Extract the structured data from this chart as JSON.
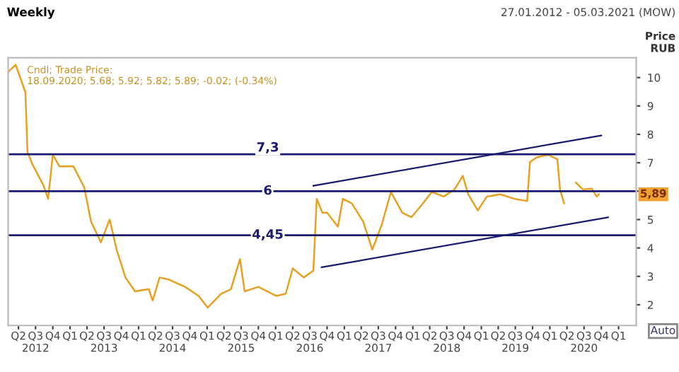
{
  "chart_data": {
    "type": "line",
    "title": "Weekly",
    "subtitle": "27.01.2012 - 05.03.2021 (MOW)",
    "ylabel": "Price\nRUB",
    "annotations": [
      "Cndl; Trade Price:\n18.09.2020; 5.68; 5.92; 5.82; 5.89; -0.02; (-0.34%)",
      "5,89",
      "Auto"
    ],
    "series": [
      {
        "color": "#e8a020",
        "x": [
          "2012-02-06",
          "2012-03-17",
          "2012-05-08",
          "2012-05-19",
          "2012-06-14",
          "2012-08-11",
          "2012-09-06",
          "2012-10-01",
          "2012-11-06",
          "2013-01-19",
          "2013-03-17",
          "2013-04-23",
          "2013-06-14",
          "2013-07-31",
          "2013-09-06",
          "2013-10-23",
          "2013-12-13",
          "2014-02-24",
          "2014-03-17",
          "2014-04-23",
          "2014-06-14",
          "2014-09-06",
          "2014-11-17",
          "2015-01-04",
          "2015-03-17",
          "2015-05-08",
          "2015-06-25",
          "2015-07-20",
          "2015-10-01",
          "2016-01-04",
          "2016-02-24",
          "2016-04-01",
          "2016-05-30",
          "2016-07-20",
          "2016-08-07",
          "2016-09-06",
          "2016-10-01",
          "2016-11-28",
          "2016-12-24",
          "2017-02-10",
          "2017-04-12",
          "2017-05-30",
          "2017-07-20",
          "2017-09-06",
          "2017-11-06",
          "2017-12-24",
          "2018-02-24",
          "2018-04-12",
          "2018-06-14",
          "2018-08-11",
          "2018-09-24",
          "2018-10-23",
          "2018-12-13",
          "2019-01-30",
          "2019-04-12",
          "2019-06-25",
          "2019-09-02",
          "2019-09-17",
          "2019-10-23",
          "2019-12-24",
          "2020-02-10",
          "2020-02-24",
          "2020-03-17",
          "2020-04-20",
          "2020-05-19",
          "2020-06-25",
          "2020-08-11",
          "2020-09-06",
          "2020-09-18"
        ],
        "values": [
          10.2,
          10.45,
          9.48,
          7.38,
          6.95,
          6.22,
          5.73,
          7.28,
          6.87,
          6.87,
          6.14,
          4.92,
          4.2,
          5.0,
          3.94,
          2.96,
          2.47,
          2.55,
          2.15,
          2.96,
          2.88,
          2.63,
          2.31,
          1.9,
          2.39,
          2.55,
          3.61,
          2.47,
          2.63,
          2.31,
          2.39,
          3.28,
          2.96,
          3.2,
          5.73,
          5.24,
          5.24,
          4.75,
          5.73,
          5.57,
          4.92,
          3.94,
          4.83,
          5.97,
          5.24,
          5.08,
          5.57,
          5.97,
          5.81,
          6.06,
          6.54,
          5.89,
          5.32,
          5.81,
          5.89,
          5.73,
          5.65,
          7.03,
          7.19,
          7.28,
          7.12,
          6.06,
          5.57,
          null,
          6.3,
          6.06,
          6.09,
          5.81,
          5.89
        ]
      },
      {
        "color": "#1a1a6e",
        "x": [
          "2016-07-20",
          "2020-10-01"
        ],
        "values": [
          6.19,
          7.96
        ]
      },
      {
        "color": "#1a1a6e",
        "x": [
          "2016-09-02",
          "2020-11-06"
        ],
        "values": [
          3.32,
          5.08
        ]
      }
    ],
    "ref_lines": [
      {
        "axis": "y",
        "value": 7.3,
        "label": "7,3",
        "color": "#1a1a6e"
      },
      {
        "axis": "y",
        "value": 6,
        "label": "6",
        "color": "#1a1a6e"
      },
      {
        "axis": "y",
        "value": 4.45,
        "label": "4,45",
        "color": "#1a1a6e"
      }
    ],
    "xlim": [
      "2012-02-06",
      "2021-04-05"
    ],
    "ylim": [
      1.27,
      10.7
    ],
    "yticks": [
      2,
      3,
      4,
      5,
      6,
      7,
      8,
      9,
      10
    ],
    "xticks": [
      {
        "value": "2012-04-01",
        "label": "Q2"
      },
      {
        "value": "2012-07-01",
        "label": "Q3\n2012"
      },
      {
        "value": "2012-10-01",
        "label": "Q4"
      },
      {
        "value": "2013-01-01",
        "label": "Q1"
      },
      {
        "value": "2013-04-01",
        "label": "Q2"
      },
      {
        "value": "2013-07-01",
        "label": "Q3\n2013"
      },
      {
        "value": "2013-10-01",
        "label": "Q4"
      },
      {
        "value": "2014-01-01",
        "label": "Q1"
      },
      {
        "value": "2014-04-01",
        "label": "Q2"
      },
      {
        "value": "2014-07-01",
        "label": "Q3\n2014"
      },
      {
        "value": "2014-10-01",
        "label": "Q4"
      },
      {
        "value": "2015-01-01",
        "label": "Q1"
      },
      {
        "value": "2015-04-01",
        "label": "Q2"
      },
      {
        "value": "2015-07-01",
        "label": "Q3\n2015"
      },
      {
        "value": "2015-10-01",
        "label": "Q4"
      },
      {
        "value": "2016-01-01",
        "label": "Q1"
      },
      {
        "value": "2016-04-01",
        "label": "Q2"
      },
      {
        "value": "2016-07-01",
        "label": "Q3\n2016"
      },
      {
        "value": "2016-10-01",
        "label": "Q4"
      },
      {
        "value": "2017-01-01",
        "label": "Q1"
      },
      {
        "value": "2017-04-01",
        "label": "Q2"
      },
      {
        "value": "2017-07-01",
        "label": "Q3\n2017"
      },
      {
        "value": "2017-10-01",
        "label": "Q4"
      },
      {
        "value": "2018-01-01",
        "label": "Q1"
      },
      {
        "value": "2018-04-01",
        "label": "Q2"
      },
      {
        "value": "2018-07-01",
        "label": "Q3\n2018"
      },
      {
        "value": "2018-10-01",
        "label": "Q4"
      },
      {
        "value": "2019-01-01",
        "label": "Q1"
      },
      {
        "value": "2019-04-01",
        "label": "Q2"
      },
      {
        "value": "2019-07-01",
        "label": "Q3\n2019"
      },
      {
        "value": "2019-10-01",
        "label": "Q4"
      },
      {
        "value": "2020-01-01",
        "label": "Q1"
      },
      {
        "value": "2020-04-01",
        "label": "Q2"
      },
      {
        "value": "2020-07-01",
        "label": "Q3\n2020"
      },
      {
        "value": "2020-10-01",
        "label": "Q4"
      },
      {
        "value": "2021-01-01",
        "label": "Q1"
      }
    ],
    "grid": false,
    "legend": false,
    "marker": "none",
    "line_style": "solid"
  }
}
